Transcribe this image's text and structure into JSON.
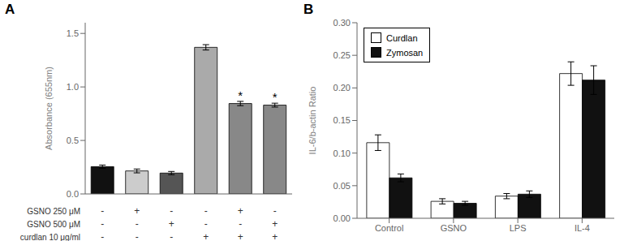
{
  "chart_data": [
    {
      "type": "bar",
      "title": "A",
      "categories": [
        null,
        null,
        null,
        null,
        null,
        null
      ],
      "values": [
        0.255,
        0.215,
        0.195,
        1.37,
        0.845,
        0.83
      ],
      "errors": [
        0.015,
        0.018,
        0.015,
        0.025,
        0.02,
        0.018
      ],
      "colors": [
        "#111111",
        "#cccccc",
        "#555555",
        "#aaaaaa",
        "#888888",
        "#888888"
      ],
      "ylabel": "Absorbance (655nm)",
      "ylim": [
        0,
        1.6
      ],
      "yticks": [
        {
          "value": 0,
          "label": "0.0"
        },
        0.5,
        {
          "value": 1,
          "label": "1.0"
        },
        1.5
      ],
      "tick_labels": "y",
      "grid": false,
      "annotations": [
        {
          "index": 4,
          "text": "*"
        },
        {
          "index": 5,
          "text": "*"
        }
      ],
      "condition_rows": [
        {
          "label": "GSNO 250 μM",
          "signs": [
            "-",
            "+",
            "-",
            "-",
            "+",
            "-"
          ]
        },
        {
          "label": "GSNO 500 μM",
          "signs": [
            "-",
            "-",
            "+",
            "-",
            "-",
            "+"
          ]
        },
        {
          "label": "curdlan 10 μg/ml",
          "signs": [
            "-",
            "-",
            "-",
            "+",
            "+",
            "+"
          ]
        }
      ]
    },
    {
      "type": "bar",
      "title": "B",
      "categories": [
        "Control",
        "GSNO",
        "LPS",
        "IL-4"
      ],
      "series": [
        {
          "name": "Curdlan",
          "color": "#ffffff",
          "values": [
            0.116,
            0.026,
            0.034,
            0.222
          ],
          "errors": [
            0.012,
            0.004,
            0.004,
            0.018
          ]
        },
        {
          "name": "Zymosan",
          "color": "#111111",
          "values": [
            0.062,
            0.023,
            0.037,
            0.212
          ],
          "errors": [
            0.006,
            0.003,
            0.005,
            0.022
          ]
        }
      ],
      "ylabel": "IL-6/b-actin Ratio",
      "ylim": [
        0,
        0.3
      ],
      "yticks": [
        {
          "value": 0,
          "label": "0.00"
        },
        0.05,
        {
          "value": 0.1,
          "label": "0.10"
        },
        0.15,
        {
          "value": 0.2,
          "label": "0.20"
        },
        0.25,
        {
          "value": 0.3,
          "label": "0.30"
        }
      ],
      "legend": "upper left",
      "grid": false
    }
  ]
}
